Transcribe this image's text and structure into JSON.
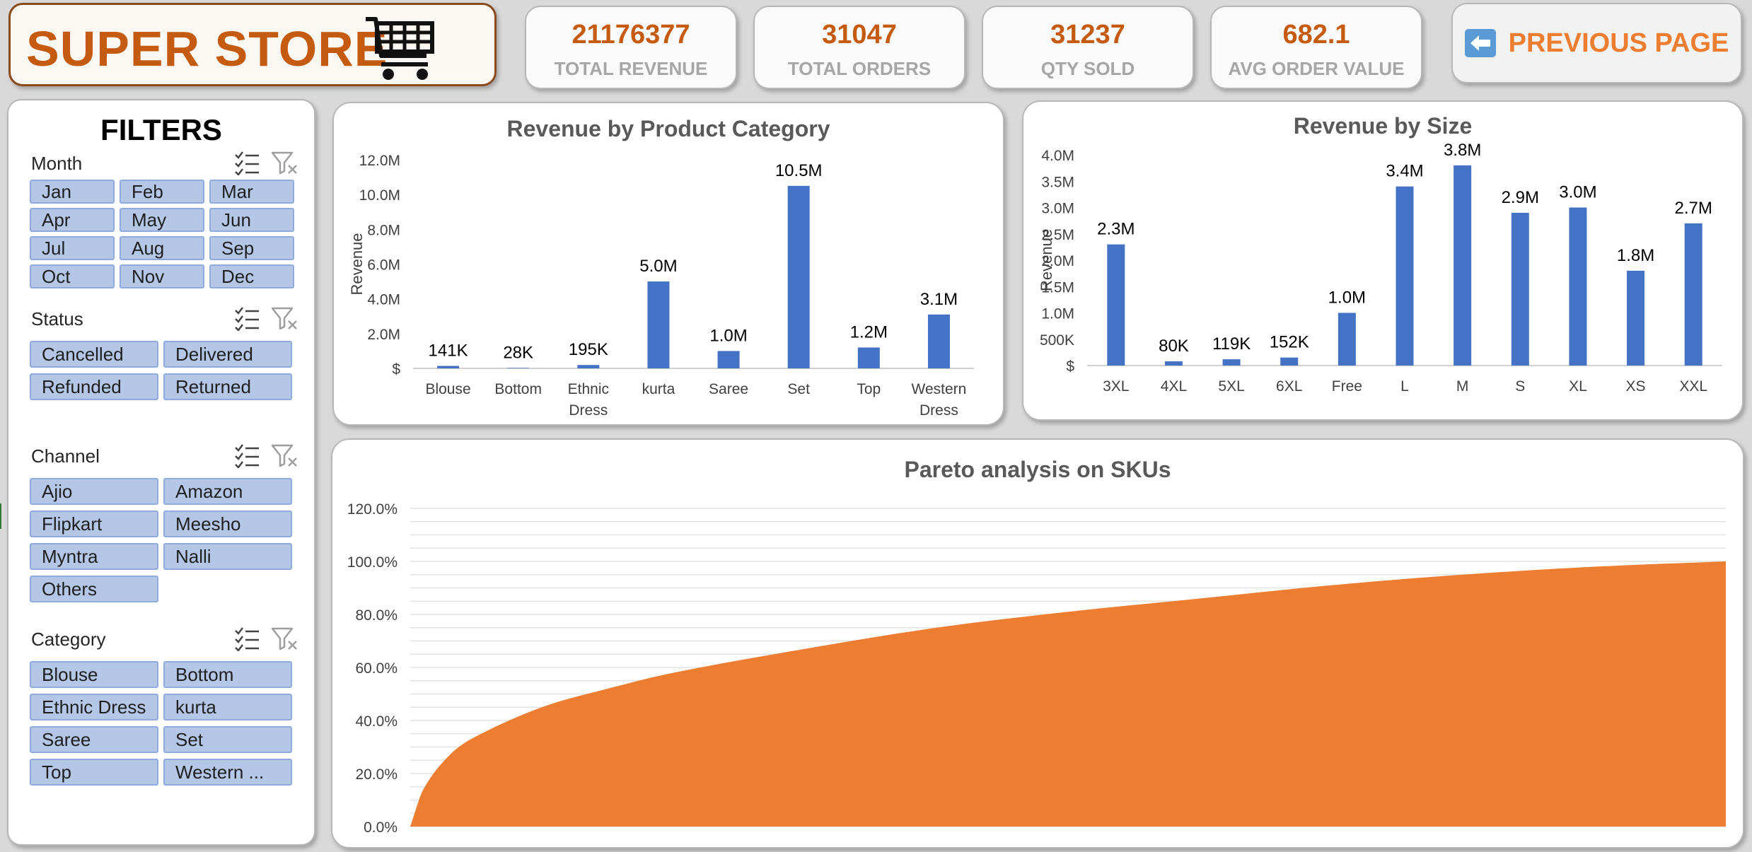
{
  "header": {
    "logo_text": "SUPER STORE",
    "cart_icon": "shopping-cart-icon",
    "previous_page_label": "PREVIOUS PAGE",
    "previous_page_icon": "left-arrow-icon"
  },
  "kpis": [
    {
      "value": "21176377",
      "label": "TOTAL REVENUE"
    },
    {
      "value": "31047",
      "label": "TOTAL ORDERS"
    },
    {
      "value": "31237",
      "label": "QTY SOLD"
    },
    {
      "value": "682.1",
      "label": "AVG ORDER VALUE"
    }
  ],
  "filters": {
    "title": "FILTERS",
    "slicers": [
      {
        "title": "Month",
        "items": [
          "Jan",
          "Feb",
          "Mar",
          "Apr",
          "May",
          "Jun",
          "Jul",
          "Aug",
          "Sep",
          "Oct",
          "Nov",
          "Dec"
        ]
      },
      {
        "title": "Status",
        "items": [
          "Cancelled",
          "Delivered",
          "Refunded",
          "Returned"
        ]
      },
      {
        "title": "Channel",
        "items": [
          "Ajio",
          "Amazon",
          "Flipkart",
          "Meesho",
          "Myntra",
          "Nalli",
          "Others"
        ]
      },
      {
        "title": "Category",
        "items": [
          "Blouse",
          "Bottom",
          "Ethnic Dress",
          "kurta",
          "Saree",
          "Set",
          "Top",
          "Western ..."
        ]
      }
    ]
  },
  "colors": {
    "accent": "#c55a11",
    "bar": "#4472c4",
    "area": "#ed7d31",
    "chip": "#b4c7e7",
    "kpi_label": "#a6a6a6"
  },
  "chart_data": [
    {
      "type": "bar",
      "title": "Revenue by Product Category",
      "ylabel": "Revenue",
      "xlabel": "",
      "categories": [
        "Blouse",
        "Bottom",
        "Ethnic Dress",
        "kurta",
        "Saree",
        "Set",
        "Top",
        "Western Dress"
      ],
      "values": [
        141000,
        28000,
        195000,
        5000000,
        1000000,
        10500000,
        1200000,
        3100000
      ],
      "data_labels": [
        "141K",
        "28K",
        "195K",
        "5.0M",
        "1.0M",
        "10.5M",
        "1.2M",
        "3.1M"
      ],
      "ylim": [
        0,
        12000000
      ],
      "yticks": [
        "$",
        "2.0M",
        "4.0M",
        "6.0M",
        "8.0M",
        "10.0M",
        "12.0M"
      ],
      "grid": false
    },
    {
      "type": "bar",
      "title": "Revenue by Size",
      "ylabel": "Revenue",
      "xlabel": "",
      "categories": [
        "3XL",
        "4XL",
        "5XL",
        "6XL",
        "Free",
        "L",
        "M",
        "S",
        "XL",
        "XS",
        "XXL"
      ],
      "values": [
        2300000,
        80000,
        119000,
        152000,
        1000000,
        3400000,
        3800000,
        2900000,
        3000000,
        1800000,
        2700000
      ],
      "data_labels": [
        "2.3M",
        "80K",
        "119K",
        "152K",
        "1.0M",
        "3.4M",
        "3.8M",
        "2.9M",
        "3.0M",
        "1.8M",
        "2.7M"
      ],
      "ylim": [
        0,
        4000000
      ],
      "yticks": [
        "$",
        "500K",
        "1.0M",
        "1.5M",
        "2.0M",
        "2.5M",
        "3.0M",
        "3.5M",
        "4.0M"
      ],
      "grid": false
    },
    {
      "type": "area",
      "title": "Pareto analysis on SKUs",
      "xlabel": "",
      "ylabel": "",
      "x": [
        0,
        0.01,
        0.03,
        0.05,
        0.1,
        0.15,
        0.2,
        0.3,
        0.4,
        0.5,
        0.6,
        0.7,
        0.8,
        0.9,
        1.0
      ],
      "values": [
        0,
        14,
        27,
        34,
        45,
        52,
        58,
        67,
        75,
        81,
        86,
        91,
        95,
        98,
        100
      ],
      "ylim": [
        0,
        120
      ],
      "yticks": [
        "0.0%",
        "20.0%",
        "40.0%",
        "60.0%",
        "80.0%",
        "100.0%",
        "120.0%"
      ],
      "grid": true
    }
  ]
}
